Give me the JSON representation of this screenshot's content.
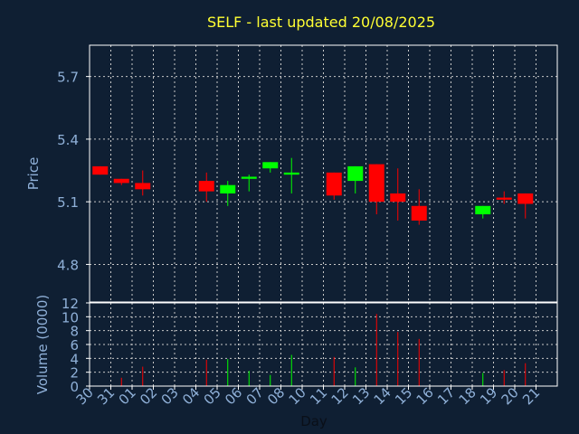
{
  "title": "SELF - last updated 20/08/2025",
  "colors": {
    "background": "#0f1f33",
    "title": "#ffff33",
    "axis_text": "#8fb0d8",
    "frame": "#ffffff",
    "grid": "#c8c8c8",
    "up": "#00ff00",
    "down": "#ff0000"
  },
  "chart_data": [
    {
      "type": "candlestick",
      "ylabel": "Price",
      "ylim": [
        4.62,
        5.85
      ],
      "yticks": [
        "5.7",
        "5.4",
        "5.1",
        "4.8"
      ],
      "ytick_values": [
        5.7,
        5.4,
        5.1,
        4.8
      ],
      "grid": true,
      "categories": [
        "30",
        "31",
        "01",
        "02",
        "03",
        "04",
        "05",
        "06",
        "07",
        "08",
        "10",
        "11",
        "12",
        "13",
        "14",
        "15",
        "16",
        "17",
        "18",
        "19",
        "20",
        "21"
      ],
      "candles": [
        {
          "day": "30",
          "open": 5.27,
          "close": 5.23,
          "high": 5.27,
          "low": 5.23
        },
        {
          "day": "31",
          "open": 5.21,
          "close": 5.19,
          "high": 5.21,
          "low": 5.18
        },
        {
          "day": "01",
          "open": 5.19,
          "close": 5.16,
          "high": 5.25,
          "low": 5.13
        },
        {
          "day": "04",
          "open": 5.2,
          "close": 5.15,
          "high": 5.24,
          "low": 5.1
        },
        {
          "day": "05",
          "open": 5.14,
          "close": 5.18,
          "high": 5.2,
          "low": 5.08
        },
        {
          "day": "06",
          "open": 5.21,
          "close": 5.22,
          "high": 5.23,
          "low": 5.15
        },
        {
          "day": "07",
          "open": 5.26,
          "close": 5.29,
          "high": 5.29,
          "low": 5.24
        },
        {
          "day": "08",
          "open": 5.23,
          "close": 5.24,
          "high": 5.31,
          "low": 5.14
        },
        {
          "day": "11",
          "open": 5.24,
          "close": 5.13,
          "high": 5.24,
          "low": 5.11
        },
        {
          "day": "12",
          "open": 5.2,
          "close": 5.27,
          "high": 5.27,
          "low": 5.14
        },
        {
          "day": "13",
          "open": 5.28,
          "close": 5.1,
          "high": 5.28,
          "low": 5.04
        },
        {
          "day": "14",
          "open": 5.14,
          "close": 5.1,
          "high": 5.26,
          "low": 5.01
        },
        {
          "day": "15",
          "open": 5.08,
          "close": 5.01,
          "high": 5.16,
          "low": 4.99
        },
        {
          "day": "18",
          "open": 5.04,
          "close": 5.08,
          "high": 5.08,
          "low": 5.02
        },
        {
          "day": "19",
          "open": 5.12,
          "close": 5.11,
          "high": 5.15,
          "low": 5.09
        },
        {
          "day": "20",
          "open": 5.14,
          "close": 5.09,
          "high": 5.14,
          "low": 5.02
        }
      ]
    },
    {
      "type": "bar",
      "ylabel": "Volume (0000)",
      "ylim": [
        0,
        12
      ],
      "yticks": [
        "12",
        "10",
        "8",
        "6",
        "4",
        "2",
        "0"
      ],
      "ytick_values": [
        12,
        10,
        8,
        6,
        4,
        2,
        0
      ],
      "xlabel": "Day",
      "grid": true,
      "categories": [
        "30",
        "31",
        "01",
        "02",
        "03",
        "04",
        "05",
        "06",
        "07",
        "08",
        "10",
        "11",
        "12",
        "13",
        "14",
        "15",
        "16",
        "17",
        "18",
        "19",
        "20",
        "21"
      ],
      "bars": [
        {
          "day": "31",
          "value": 1.2,
          "dir": "down"
        },
        {
          "day": "01",
          "value": 2.8,
          "dir": "down"
        },
        {
          "day": "04",
          "value": 3.8,
          "dir": "down"
        },
        {
          "day": "05",
          "value": 3.9,
          "dir": "up"
        },
        {
          "day": "06",
          "value": 2.2,
          "dir": "up"
        },
        {
          "day": "07",
          "value": 1.6,
          "dir": "up"
        },
        {
          "day": "08",
          "value": 4.5,
          "dir": "up"
        },
        {
          "day": "11",
          "value": 4.2,
          "dir": "down"
        },
        {
          "day": "12",
          "value": 2.7,
          "dir": "up"
        },
        {
          "day": "13",
          "value": 10.4,
          "dir": "down"
        },
        {
          "day": "14",
          "value": 7.8,
          "dir": "down"
        },
        {
          "day": "15",
          "value": 6.8,
          "dir": "down"
        },
        {
          "day": "18",
          "value": 1.9,
          "dir": "up"
        },
        {
          "day": "19",
          "value": 2.3,
          "dir": "down"
        },
        {
          "day": "20",
          "value": 3.3,
          "dir": "down"
        }
      ]
    }
  ]
}
